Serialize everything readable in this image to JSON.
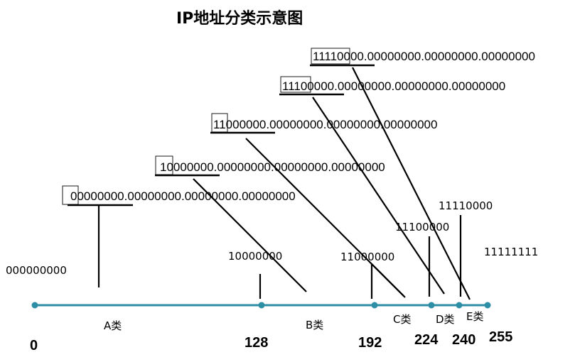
{
  "title": "IP地址分类示意图",
  "rows": {
    "a": {
      "prefix": "",
      "rest": "00000000.00000000.00000000.00000000"
    },
    "b": {
      "prefix": "1",
      "rest": "0000000.00000000.00000000.00000000"
    },
    "c": {
      "prefix": "11",
      "rest": "000000.00000000.00000000.00000000"
    },
    "d": {
      "prefix": "1110",
      "rest": "0000.00000000.00000000.00000000"
    },
    "e": {
      "prefix": "11110",
      "rest": "000.00000000.00000000.00000000"
    }
  },
  "boundaries": {
    "b": "10000000",
    "c": "11000000",
    "d": "11100000",
    "e": "11110000",
    "end": "11111111",
    "start": "000000000"
  },
  "classes": {
    "a": "A类",
    "b": "B类",
    "c": "C类",
    "d": "D类",
    "e": "E类"
  },
  "ticks": {
    "t0": "0",
    "t128": "128",
    "t192": "192",
    "t224": "224",
    "t240": "240",
    "t255": "255"
  }
}
